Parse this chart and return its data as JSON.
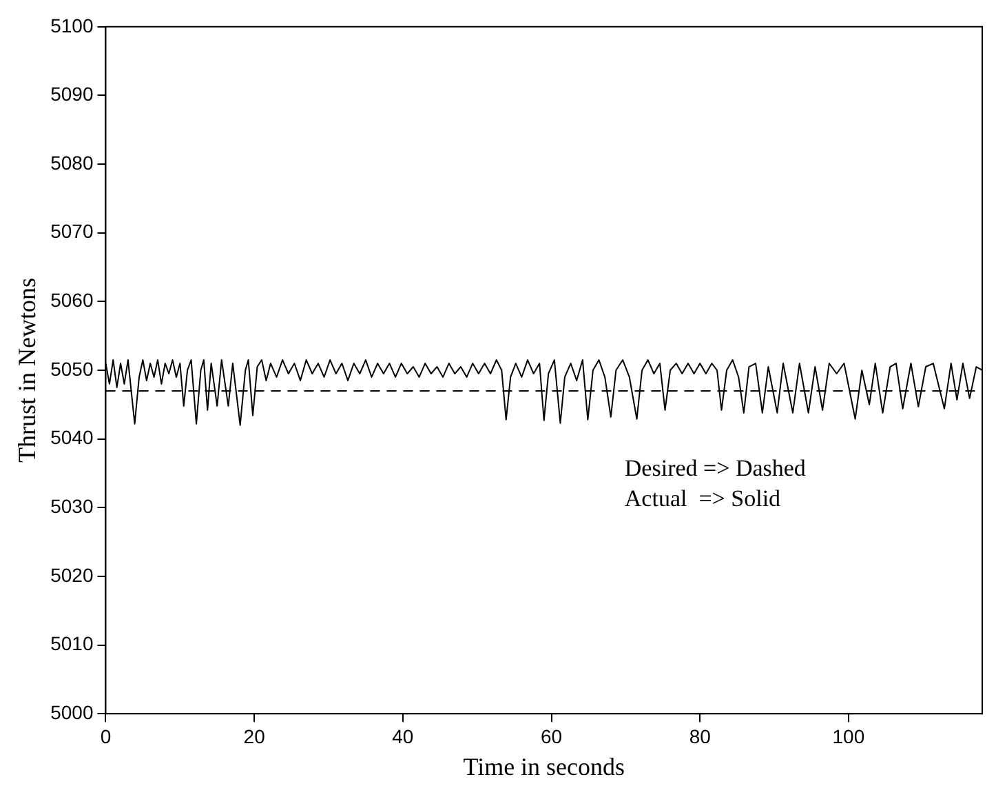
{
  "chart_data": {
    "type": "line",
    "xlabel": "Time in seconds",
    "ylabel": "Thrust in Newtons",
    "xlim": [
      0,
      118
    ],
    "xticks": [
      0,
      20,
      40,
      60,
      80,
      100
    ],
    "ylim": [
      5000,
      5100
    ],
    "yticks": [
      5000,
      5010,
      5020,
      5030,
      5040,
      5050,
      5060,
      5070,
      5080,
      5090,
      5100
    ],
    "grid": false,
    "legend": false,
    "marker": "none",
    "annotations": [
      "Desired => Dashed",
      "Actual  => Solid"
    ],
    "series": [
      {
        "color": "#000000",
        "line_style": "dashed",
        "x": [
          0,
          118
        ],
        "values": [
          5047,
          5047
        ]
      },
      {
        "color": "#000000",
        "line_style": "solid",
        "x": [
          0,
          0.5,
          1,
          1.5,
          2,
          2.5,
          3,
          3.9,
          4.5,
          5,
          5.5,
          6,
          6.5,
          7,
          7.5,
          8,
          8.5,
          9,
          9.5,
          10,
          10.5,
          11,
          11.5,
          12.2,
          12.8,
          13.2,
          13.7,
          14.2,
          15,
          15.6,
          16.5,
          17.1,
          18.1,
          18.8,
          19.2,
          19.8,
          20.4,
          21,
          21.6,
          22.2,
          23,
          23.8,
          24.6,
          25.4,
          26.2,
          27,
          27.8,
          28.6,
          29.4,
          30.2,
          31,
          31.8,
          32.6,
          33.4,
          34.2,
          35,
          35.8,
          36.6,
          37.4,
          38.2,
          39,
          39.8,
          40.6,
          41.4,
          42.2,
          43,
          43.8,
          44.6,
          45.4,
          46.2,
          47,
          47.8,
          48.6,
          49.4,
          50.2,
          51,
          51.8,
          52.6,
          53.3,
          53.9,
          54.5,
          55.2,
          56,
          56.8,
          57.6,
          58.4,
          59,
          59.6,
          60.4,
          61.2,
          61.8,
          62.6,
          63.4,
          64.2,
          64.9,
          65.6,
          66.4,
          67.2,
          68,
          68.7,
          69.6,
          70.5,
          71.5,
          72.2,
          73,
          73.8,
          74.6,
          75.3,
          76,
          76.8,
          77.6,
          78.4,
          79.2,
          80,
          80.8,
          81.6,
          82.3,
          82.9,
          83.6,
          84.4,
          85.2,
          85.9,
          86.6,
          87.5,
          88.4,
          89.2,
          90.4,
          91.2,
          92.5,
          93.4,
          94.6,
          95.5,
          96.5,
          97.4,
          98.4,
          99.4,
          100.9,
          101.8,
          102.8,
          103.6,
          104.6,
          105.6,
          106.4,
          107.3,
          108.4,
          109.4,
          110.4,
          111.4,
          112.9,
          113.8,
          114.6,
          115.4,
          116.3,
          117.2,
          118
        ],
        "values": [
          5051,
          5048,
          5051.5,
          5047.5,
          5051,
          5048,
          5051.5,
          5042.2,
          5049,
          5051.5,
          5048.5,
          5051,
          5049,
          5051.5,
          5048,
          5051,
          5049.5,
          5051.5,
          5049,
          5051,
          5044.8,
          5050,
          5051.5,
          5042.2,
          5050,
          5051.5,
          5044.2,
          5051,
          5044.8,
          5051.5,
          5044.8,
          5051,
          5042,
          5050,
          5051.5,
          5043.4,
          5050.5,
          5051.5,
          5048.5,
          5051,
          5049,
          5051.5,
          5049.5,
          5051,
          5048.5,
          5051.5,
          5049.5,
          5051,
          5049,
          5051.5,
          5049.5,
          5051,
          5048.5,
          5051,
          5049.5,
          5051.5,
          5049,
          5051,
          5049.5,
          5051,
          5049,
          5051,
          5049.5,
          5050.5,
          5049,
          5051,
          5049.5,
          5050.5,
          5049,
          5051,
          5049.5,
          5050.5,
          5049,
          5051,
          5049.5,
          5051,
          5049.5,
          5051.5,
          5050,
          5042.8,
          5049,
          5051,
          5049,
          5051.5,
          5049.5,
          5051,
          5042.7,
          5049.5,
          5051.5,
          5042.3,
          5049,
          5051,
          5048.5,
          5051.5,
          5042.8,
          5050,
          5051.5,
          5049,
          5043.2,
          5050,
          5051.5,
          5049,
          5042.9,
          5050,
          5051.5,
          5049.5,
          5051,
          5044.2,
          5050,
          5051,
          5049.5,
          5051,
          5049.5,
          5051,
          5049.5,
          5051,
          5050,
          5044.2,
          5050,
          5051.5,
          5049,
          5043.8,
          5050.5,
          5051,
          5043.8,
          5050.5,
          5043.8,
          5051,
          5043.8,
          5051,
          5043.8,
          5050.5,
          5044.2,
          5051,
          5049.5,
          5051,
          5042.9,
          5050,
          5045,
          5051,
          5043.8,
          5050.5,
          5051,
          5044.4,
          5051,
          5044.7,
          5050.5,
          5051,
          5044.4,
          5051,
          5045.7,
          5051,
          5045.9,
          5050.5,
          5050
        ]
      }
    ]
  }
}
